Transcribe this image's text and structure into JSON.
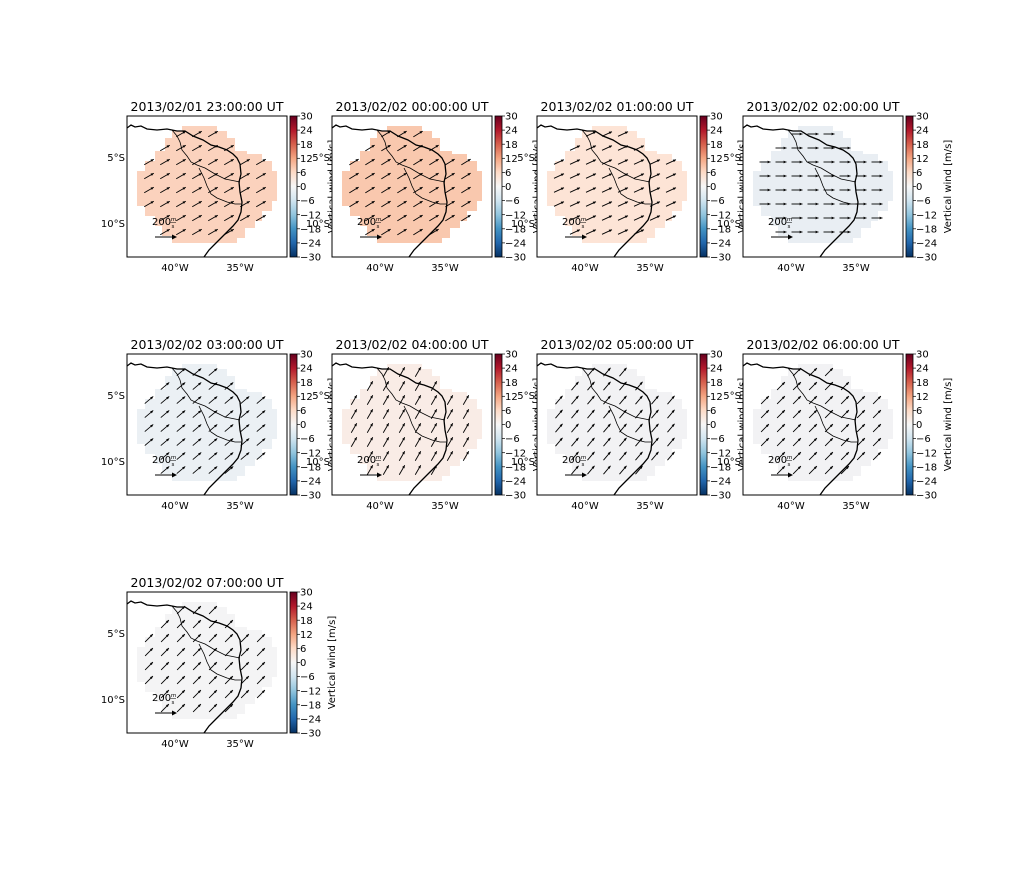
{
  "figure": {
    "colorbar": {
      "label": "Vertical wind [m/s]",
      "ticks": [
        "30",
        "24",
        "18",
        "12",
        "6",
        "0",
        "−6",
        "−12",
        "−18",
        "−24",
        "−30"
      ],
      "range": [
        -30,
        30
      ],
      "colormap": "RdBu_r"
    },
    "axes": {
      "xticks": [
        "40°W",
        "35°W"
      ],
      "yticks": [
        "5°S",
        "10°S"
      ]
    },
    "quiver_key": {
      "number": "200",
      "unit_num": "m",
      "unit_den": "s"
    },
    "panels": [
      {
        "title": "2013/02/01 23:00:00 UT",
        "fill": "#fbd2bd",
        "arrow_angle": -30
      },
      {
        "title": "2013/02/02 00:00:00 UT",
        "fill": "#f9c8ae",
        "arrow_angle": -32
      },
      {
        "title": "2013/02/02 01:00:00 UT",
        "fill": "#fde4d6",
        "arrow_angle": -25
      },
      {
        "title": "2013/02/02 02:00:00 UT",
        "fill": "#e9eef3",
        "arrow_angle": 0
      },
      {
        "title": "2013/02/02 03:00:00 UT",
        "fill": "#ebf0f4",
        "arrow_angle": -40
      },
      {
        "title": "2013/02/02 04:00:00 UT",
        "fill": "#f9ece6",
        "arrow_angle": -60
      },
      {
        "title": "2013/02/02 05:00:00 UT",
        "fill": "#f2f2f4",
        "arrow_angle": -50
      },
      {
        "title": "2013/02/02 06:00:00 UT",
        "fill": "#f2f2f4",
        "arrow_angle": -45
      },
      {
        "title": "2013/02/02 07:00:00 UT",
        "fill": "#f4f4f5",
        "arrow_angle": -45
      }
    ]
  }
}
